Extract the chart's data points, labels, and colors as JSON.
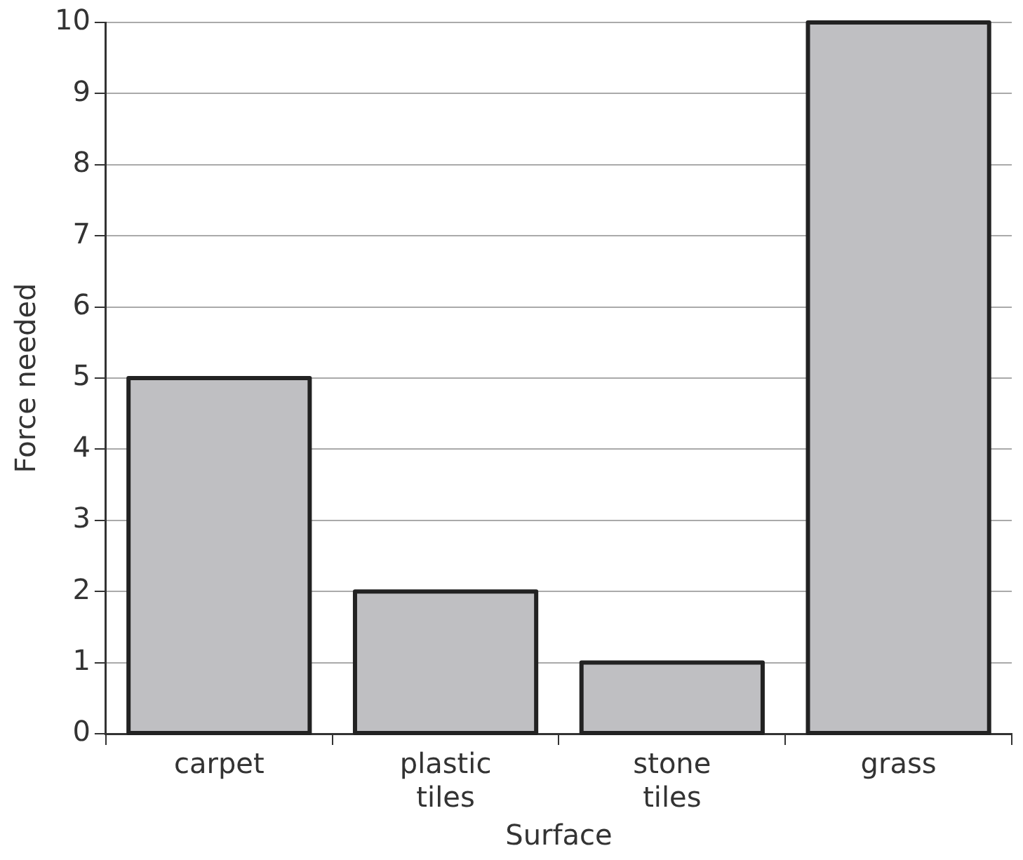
{
  "chart_data": {
    "type": "bar",
    "xlabel": "Surface",
    "ylabel": "Force needed",
    "categories": [
      "carpet",
      "plastic tiles",
      "stone tiles",
      "grass"
    ],
    "values": [
      5,
      2,
      1,
      10
    ],
    "color": "#bfbfc2",
    "ylim": [
      0,
      10
    ],
    "yticks": [
      0,
      1,
      2,
      3,
      4,
      5,
      6,
      7,
      8,
      9,
      10
    ],
    "grid": "y",
    "legend": false
  }
}
